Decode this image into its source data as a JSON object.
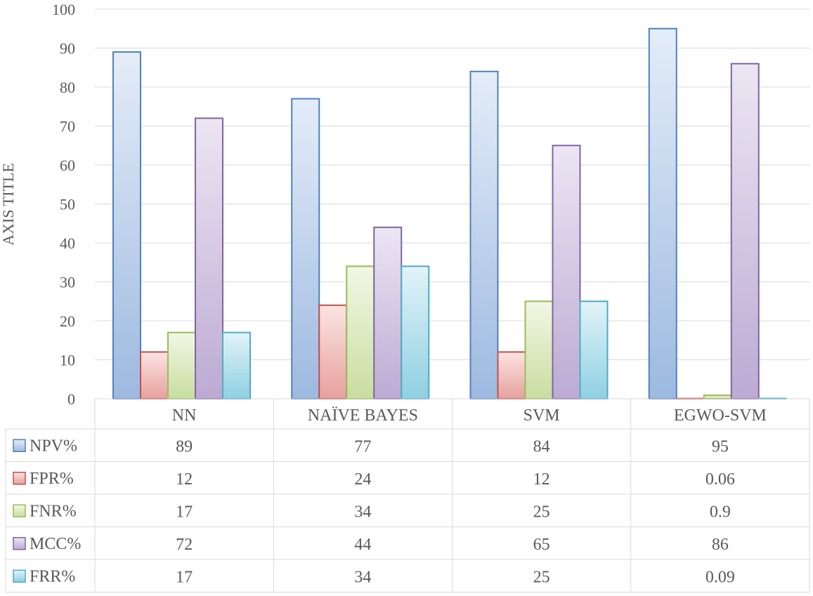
{
  "chart_data": {
    "type": "bar",
    "ylabel": "AXIS TITLE",
    "ylim": [
      0,
      100
    ],
    "yticks": [
      0,
      10,
      20,
      30,
      40,
      50,
      60,
      70,
      80,
      90,
      100
    ],
    "grid": true,
    "legend": "data-table",
    "categories": [
      "NN",
      "NAÏVE BAYES",
      "SVM",
      "EGWO-SVM"
    ],
    "series": [
      {
        "name": "NPV%",
        "values": [
          89,
          77,
          84,
          95
        ],
        "labels": [
          "89",
          "77",
          "84",
          "95"
        ],
        "color": "#4F81BD",
        "fill_top": "#E4EDF8",
        "fill_bottom": "#9DB9E0"
      },
      {
        "name": "FPR%",
        "values": [
          12,
          24,
          12,
          0.06
        ],
        "labels": [
          "12",
          "24",
          "12",
          "0.06"
        ],
        "color": "#C0504D",
        "fill_top": "#FBE4E3",
        "fill_bottom": "#E6A09D"
      },
      {
        "name": "FNR%",
        "values": [
          17,
          34,
          25,
          0.9
        ],
        "labels": [
          "17",
          "34",
          "25",
          "0.9"
        ],
        "color": "#9BBB59",
        "fill_top": "#F1F7E4",
        "fill_bottom": "#C9DDA0"
      },
      {
        "name": "MCC%",
        "values": [
          72,
          44,
          65,
          86
        ],
        "labels": [
          "72",
          "44",
          "65",
          "86"
        ],
        "color": "#8064A2",
        "fill_top": "#ECE6F3",
        "fill_bottom": "#BCAAD3"
      },
      {
        "name": "FRR%",
        "values": [
          17,
          34,
          25,
          0.09
        ],
        "labels": [
          "17",
          "34",
          "25",
          "0.09"
        ],
        "color": "#4BACC6",
        "fill_top": "#E2F3F8",
        "fill_bottom": "#8FD0E2"
      }
    ]
  }
}
